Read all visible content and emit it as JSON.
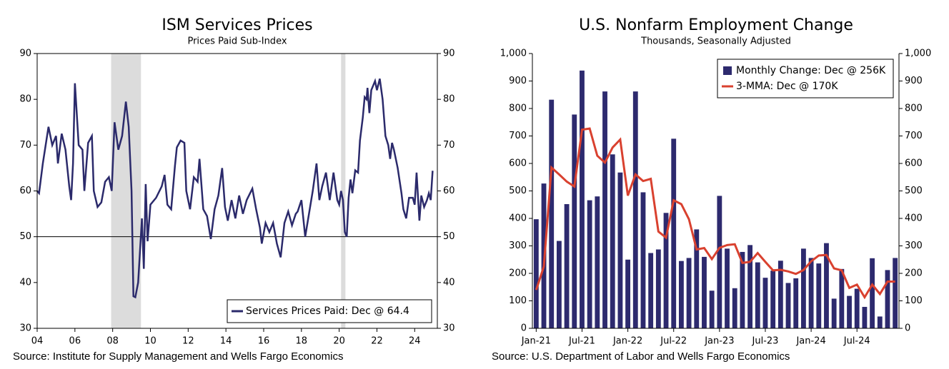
{
  "chart_data": [
    {
      "type": "line",
      "title": "ISM Services Prices",
      "subtitle": "Prices Paid Sub-Index",
      "source": "Source: Institute for Supply Management and Wells Fargo Economics",
      "frame": true,
      "legend": "lower right",
      "hline": 50,
      "recessions": [
        [
          2007.92,
          2009.5
        ],
        [
          2020.1,
          2020.33
        ]
      ],
      "xlim": [
        2004,
        2025.2
      ],
      "xticks": [
        {
          "value": 2004,
          "label": "04"
        },
        {
          "value": 2006,
          "label": "06"
        },
        {
          "value": 2008,
          "label": "08"
        },
        {
          "value": 2010,
          "label": "10"
        },
        {
          "value": 2012,
          "label": "12"
        },
        {
          "value": 2014,
          "label": "14"
        },
        {
          "value": 2016,
          "label": "16"
        },
        {
          "value": 2018,
          "label": "18"
        },
        {
          "value": 2020,
          "label": "20"
        },
        {
          "value": 2022,
          "label": "22"
        },
        {
          "value": 2024,
          "label": "24"
        }
      ],
      "ylim": [
        30,
        90
      ],
      "yticks": [
        30,
        40,
        50,
        60,
        70,
        80,
        90
      ],
      "y2lim": [
        30,
        90
      ],
      "y2ticks": [
        30,
        40,
        50,
        60,
        70,
        80,
        90
      ],
      "x": [
        2004.0,
        2004.1,
        2004.3,
        2004.6,
        2004.8,
        2005.0,
        2005.1,
        2005.3,
        2005.5,
        2005.7,
        2005.8,
        2005.9,
        2006.0,
        2006.2,
        2006.4,
        2006.5,
        2006.7,
        2006.9,
        2007.0,
        2007.2,
        2007.4,
        2007.6,
        2007.8,
        2007.95,
        2008.1,
        2008.3,
        2008.5,
        2008.7,
        2008.85,
        2009.0,
        2009.1,
        2009.2,
        2009.35,
        2009.45,
        2009.55,
        2009.65,
        2009.75,
        2009.85,
        2010.0,
        2010.3,
        2010.6,
        2010.75,
        2010.9,
        2011.1,
        2011.3,
        2011.4,
        2011.6,
        2011.8,
        2011.9,
        2012.1,
        2012.3,
        2012.5,
        2012.6,
        2012.8,
        2013.0,
        2013.2,
        2013.4,
        2013.6,
        2013.8,
        2013.95,
        2014.1,
        2014.3,
        2014.5,
        2014.7,
        2014.9,
        2015.1,
        2015.4,
        2015.6,
        2015.8,
        2015.9,
        2016.1,
        2016.3,
        2016.5,
        2016.7,
        2016.9,
        2017.1,
        2017.3,
        2017.5,
        2017.7,
        2017.8,
        2018.0,
        2018.2,
        2018.4,
        2018.6,
        2018.8,
        2018.95,
        2019.1,
        2019.3,
        2019.5,
        2019.7,
        2019.9,
        2020.0,
        2020.1,
        2020.2,
        2020.3,
        2020.4,
        2020.5,
        2020.6,
        2020.7,
        2020.85,
        2021.0,
        2021.1,
        2021.25,
        2021.35,
        2021.45,
        2021.5,
        2021.6,
        2021.7,
        2021.8,
        2021.9,
        2022.0,
        2022.15,
        2022.3,
        2022.45,
        2022.6,
        2022.7,
        2022.8,
        2022.9,
        2023.1,
        2023.3,
        2023.4,
        2023.55,
        2023.7,
        2023.9,
        2024.0,
        2024.1,
        2024.25,
        2024.35,
        2024.5,
        2024.65,
        2024.75,
        2024.85,
        2024.95
      ],
      "series": [
        {
          "name": "Services Prices Paid: Dec @ 64.4",
          "color": "#2b2a6b",
          "values": [
            60,
            59.5,
            66,
            74,
            70,
            72,
            66,
            72.5,
            69,
            61,
            58,
            66,
            83.5,
            70,
            69,
            60,
            70.5,
            72,
            60,
            56.5,
            57.5,
            62,
            63,
            60,
            75,
            69,
            72,
            79.5,
            74,
            60,
            37,
            36.8,
            40,
            47,
            54,
            43,
            61.5,
            49,
            57,
            58.5,
            61,
            63.5,
            57,
            56,
            65.5,
            69.5,
            71,
            70.5,
            60,
            56,
            63,
            62,
            67,
            56,
            54.5,
            49.5,
            56,
            59,
            65,
            56.5,
            53.5,
            58,
            54,
            59,
            55,
            58,
            60.5,
            56,
            52,
            48.5,
            53,
            51,
            53,
            48.5,
            45.5,
            53,
            55.5,
            52.5,
            55,
            55.5,
            58,
            50,
            55,
            60,
            66,
            58,
            61,
            64,
            58,
            64,
            58,
            57,
            60,
            58,
            51,
            50,
            58.5,
            62.5,
            59.5,
            64.5,
            64,
            71,
            76,
            80.5,
            80,
            82.5,
            77,
            82,
            83,
            84,
            82,
            84.5,
            80,
            72,
            70,
            67,
            70.5,
            69,
            65,
            59.5,
            56,
            54,
            58.5,
            58.5,
            57,
            64,
            53.5,
            59,
            56.5,
            58,
            59.5,
            58,
            64.4
          ]
        }
      ]
    },
    {
      "type": "bar",
      "title": "U.S. Nonfarm Employment Change",
      "subtitle": "Thousands, Seasonally Adjusted",
      "source": "Source: U.S. Department of Labor and Wells Fargo Economics",
      "frame": false,
      "legend": "upper right",
      "categories": [
        "Jan-21",
        null,
        null,
        null,
        null,
        null,
        "Jul-21",
        null,
        null,
        null,
        null,
        null,
        "Jan-22",
        null,
        null,
        null,
        null,
        null,
        "Jul-22",
        null,
        null,
        null,
        null,
        null,
        "Jan-23",
        null,
        null,
        null,
        null,
        null,
        "Jul-23",
        null,
        null,
        null,
        null,
        null,
        "Jan-24",
        null,
        null,
        null,
        null,
        null,
        "Jul-24",
        null,
        null,
        null,
        null,
        null
      ],
      "ylim": [
        0,
        1000
      ],
      "yticks": [
        0,
        100,
        200,
        300,
        400,
        500,
        600,
        700,
        800,
        900,
        {
          "value": 1000,
          "label": "1,000"
        }
      ],
      "y2lim": [
        0,
        1000
      ],
      "y2ticks": [
        0,
        100,
        200,
        300,
        400,
        500,
        600,
        700,
        800,
        900,
        {
          "value": 1000,
          "label": "1,000"
        }
      ],
      "series": [
        {
          "name": "Monthly Change: Dec @ 256K",
          "type": "bar",
          "color": "#2d2a6e",
          "values": [
            397,
            527,
            832,
            318,
            452,
            778,
            938,
            466,
            480,
            862,
            633,
            567,
            250,
            862,
            495,
            274,
            287,
            420,
            690,
            245,
            256,
            360,
            260,
            137,
            482,
            290,
            146,
            278,
            303,
            240,
            184,
            210,
            246,
            165,
            182,
            290,
            256,
            236,
            310,
            108,
            216,
            118,
            144,
            78,
            255,
            43,
            212,
            256
          ]
        },
        {
          "name": "3-MMA: Dec @ 170K",
          "type": "line",
          "color": "#d9412f",
          "values": [
            140,
            225,
            585,
            560,
            534,
            516,
            723,
            727,
            628,
            603,
            658,
            687,
            483,
            560,
            536,
            544,
            352,
            330,
            466,
            452,
            397,
            287,
            292,
            252,
            293,
            303,
            306,
            238,
            242,
            274,
            242,
            211,
            213,
            207,
            198,
            212,
            244,
            265,
            267,
            218,
            211,
            147,
            159,
            113,
            159,
            125,
            170,
            170
          ]
        }
      ]
    }
  ]
}
